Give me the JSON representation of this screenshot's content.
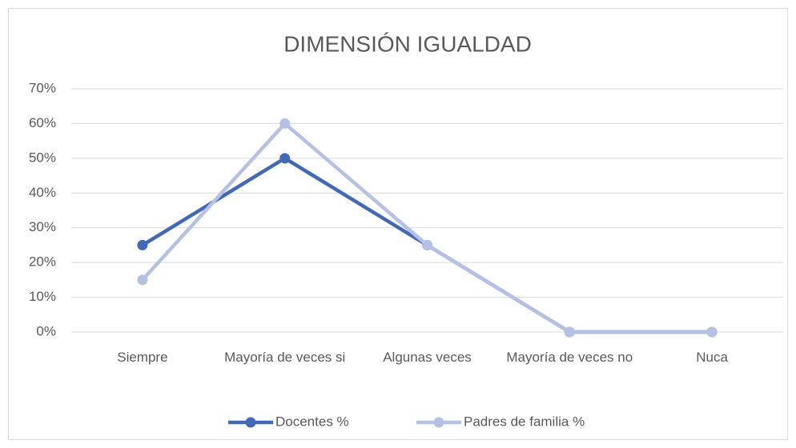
{
  "chart_data": {
    "type": "line",
    "title": "DIMENSIÓN IGUALDAD",
    "categories": [
      "Siempre",
      "Mayoría de veces si",
      "Algunas veces",
      "Mayoría de veces no",
      "Nuca"
    ],
    "series": [
      {
        "name": "Docentes %",
        "color": "#4169b8",
        "values": [
          25,
          50,
          25,
          0,
          0
        ]
      },
      {
        "name": "Padres de familia %",
        "color": "#b4c0e4",
        "values": [
          15,
          60,
          25,
          0,
          0
        ]
      }
    ],
    "ylim": [
      0,
      70
    ],
    "yticks": [
      {
        "value": 0,
        "label": "0%"
      },
      {
        "value": 10,
        "label": "10%"
      },
      {
        "value": 20,
        "label": "20%"
      },
      {
        "value": 30,
        "label": "30%"
      },
      {
        "value": 40,
        "label": "40%"
      },
      {
        "value": 50,
        "label": "50%"
      },
      {
        "value": 60,
        "label": "60%"
      },
      {
        "value": 70,
        "label": "70%"
      }
    ],
    "grid": true,
    "legend": "bottom"
  }
}
